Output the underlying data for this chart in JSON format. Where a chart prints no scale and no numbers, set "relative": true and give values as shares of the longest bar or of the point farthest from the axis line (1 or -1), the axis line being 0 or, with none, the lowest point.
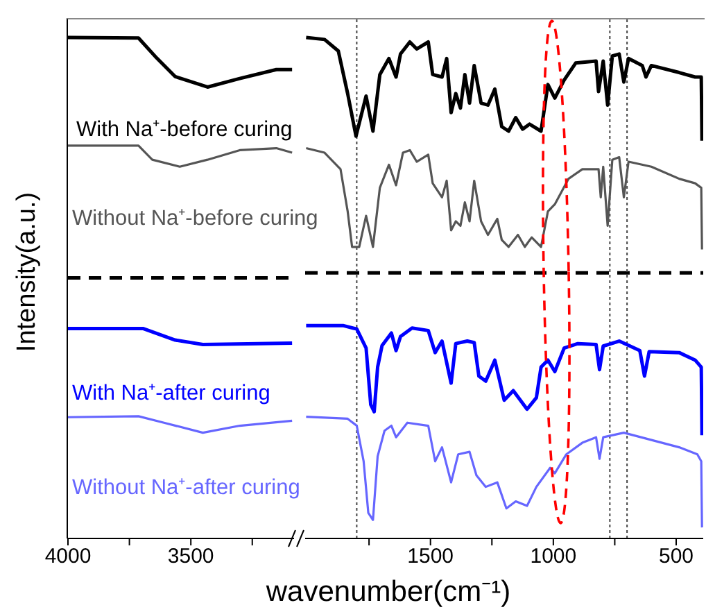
{
  "chart_data": [
    {
      "type": "line",
      "ylabel": "Intensity(a.u.)",
      "relative": true,
      "xlim": [
        4000,
        3080
      ],
      "xticks": [
        4000,
        {
          "value": 3750,
          "label": null
        },
        3500,
        {
          "value": 3250,
          "label": null
        }
      ],
      "marker": "none",
      "line_style": "solid",
      "ref_lines": [
        {
          "axis": "y",
          "value": 0.52,
          "color": "#000000",
          "line_style": "dashed"
        }
      ],
      "series": [
        {
          "name": "With Na⁺-before curing",
          "color": "#000000",
          "x": [
            4000,
            3713,
            3639,
            3564,
            3432,
            3301,
            3152,
            3088
          ],
          "values": [
            1.0,
            0.999,
            0.959,
            0.922,
            0.901,
            0.918,
            0.936,
            0.936
          ]
        },
        {
          "name": "Without Na⁺-before curing",
          "color": "#555555",
          "x": [
            4000,
            3713,
            3657,
            3545,
            3432,
            3301,
            3152,
            3088
          ],
          "values": [
            0.784,
            0.784,
            0.756,
            0.742,
            0.756,
            0.775,
            0.779,
            0.77
          ]
        },
        {
          "name": "With Na⁺-after curing",
          "color": "#0000ff",
          "x": [
            4000,
            3695,
            3564,
            3451,
            3088
          ],
          "values": [
            0.419,
            0.419,
            0.396,
            0.387,
            0.39
          ]
        },
        {
          "name": "Without Na⁺-after curing",
          "color": "#6666ff",
          "x": [
            4000,
            3713,
            3601,
            3451,
            3301,
            3088
          ],
          "values": [
            0.242,
            0.244,
            0.23,
            0.211,
            0.225,
            0.235
          ]
        }
      ]
    },
    {
      "type": "line",
      "xlabel": "wavenumber(cm⁻¹)",
      "relative": true,
      "xlim": [
        2010,
        390
      ],
      "xticks": [
        {
          "value": 1750,
          "label": null
        },
        1500,
        {
          "value": 1250,
          "label": null
        },
        1000,
        {
          "value": 750,
          "label": null
        },
        500
      ],
      "marker": "none",
      "line_style": "solid",
      "ref_lines": [
        {
          "axis": "y",
          "value": 0.53,
          "color": "#000000",
          "line_style": "dashed"
        },
        {
          "axis": "x",
          "value": 1800,
          "color": "#444444",
          "line_style": "dotted"
        },
        {
          "axis": "x",
          "value": 770,
          "color": "#444444",
          "line_style": "dotted"
        },
        {
          "axis": "x",
          "value": 700,
          "color": "#444444",
          "line_style": "dotted"
        }
      ],
      "series": [
        {
          "color": "#000000",
          "x": [
            2006,
            1931,
            1875,
            1837,
            1803,
            1762,
            1734,
            1706,
            1669,
            1640,
            1622,
            1584,
            1556,
            1509,
            1491,
            1453,
            1434,
            1416,
            1397,
            1378,
            1360,
            1341,
            1322,
            1294,
            1266,
            1238,
            1210,
            1182,
            1153,
            1125,
            1097,
            1050,
            1022,
            994,
            956,
            909,
            826,
            816,
            797,
            779,
            760,
            732,
            713,
            694,
            638,
            623,
            601,
            488,
            423,
            398,
            395
          ],
          "values": [
            1.0,
            0.996,
            0.973,
            0.888,
            0.803,
            0.883,
            0.813,
            0.926,
            0.958,
            0.921,
            0.967,
            0.991,
            0.977,
            0.991,
            0.926,
            0.921,
            0.958,
            0.85,
            0.888,
            0.859,
            0.926,
            0.869,
            0.944,
            0.869,
            0.865,
            0.897,
            0.822,
            0.813,
            0.84,
            0.817,
            0.827,
            0.813,
            0.906,
            0.879,
            0.915,
            0.949,
            0.953,
            0.892,
            0.953,
            0.865,
            0.963,
            0.967,
            0.911,
            0.958,
            0.944,
            0.921,
            0.944,
            0.93,
            0.921,
            0.921,
            0.794
          ]
        },
        {
          "color": "#555555",
          "x": [
            2006,
            1931,
            1866,
            1837,
            1819,
            1790,
            1762,
            1734,
            1706,
            1669,
            1640,
            1612,
            1584,
            1556,
            1509,
            1491,
            1453,
            1434,
            1416,
            1397,
            1378,
            1360,
            1341,
            1322,
            1294,
            1266,
            1228,
            1210,
            1182,
            1144,
            1116,
            1088,
            1050,
            1022,
            994,
            938,
            882,
            816,
            807,
            797,
            779,
            760,
            732,
            713,
            694,
            601,
            488,
            423,
            398,
            395
          ],
          "values": [
            0.779,
            0.77,
            0.737,
            0.653,
            0.582,
            0.582,
            0.644,
            0.582,
            0.7,
            0.746,
            0.705,
            0.77,
            0.775,
            0.752,
            0.766,
            0.709,
            0.681,
            0.714,
            0.615,
            0.633,
            0.624,
            0.671,
            0.633,
            0.714,
            0.633,
            0.606,
            0.638,
            0.596,
            0.582,
            0.606,
            0.582,
            0.601,
            0.582,
            0.653,
            0.667,
            0.718,
            0.737,
            0.737,
            0.681,
            0.742,
            0.624,
            0.756,
            0.761,
            0.681,
            0.752,
            0.742,
            0.718,
            0.709,
            0.7,
            0.577
          ]
        },
        {
          "color": "#0000ff",
          "x": [
            2006,
            1856,
            1800,
            1762,
            1743,
            1729,
            1715,
            1697,
            1659,
            1640,
            1622,
            1575,
            1509,
            1481,
            1453,
            1416,
            1397,
            1350,
            1322,
            1303,
            1275,
            1238,
            1200,
            1163,
            1107,
            1069,
            1050,
            1022,
            994,
            956,
            900,
            826,
            812,
            797,
            732,
            648,
            629,
            610,
            488,
            423,
            398,
            395
          ],
          "values": [
            0.425,
            0.425,
            0.418,
            0.38,
            0.267,
            0.253,
            0.342,
            0.385,
            0.41,
            0.375,
            0.403,
            0.42,
            0.415,
            0.371,
            0.394,
            0.31,
            0.389,
            0.394,
            0.391,
            0.324,
            0.314,
            0.356,
            0.276,
            0.295,
            0.258,
            0.281,
            0.342,
            0.356,
            0.333,
            0.38,
            0.389,
            0.387,
            0.337,
            0.384,
            0.394,
            0.375,
            0.324,
            0.373,
            0.371,
            0.356,
            0.342,
            0.206
          ]
        },
        {
          "color": "#6666ff",
          "x": [
            2006,
            1837,
            1800,
            1772,
            1753,
            1734,
            1715,
            1687,
            1659,
            1640,
            1594,
            1509,
            1481,
            1453,
            1416,
            1387,
            1341,
            1313,
            1275,
            1228,
            1191,
            1153,
            1107,
            1069,
            1013,
            994,
            947,
            882,
            826,
            812,
            797,
            713,
            488,
            414,
            398,
            395
          ],
          "values": [
            0.243,
            0.239,
            0.225,
            0.154,
            0.051,
            0.037,
            0.164,
            0.215,
            0.225,
            0.202,
            0.231,
            0.225,
            0.154,
            0.182,
            0.112,
            0.168,
            0.173,
            0.126,
            0.103,
            0.112,
            0.06,
            0.074,
            0.065,
            0.103,
            0.141,
            0.13,
            0.168,
            0.191,
            0.202,
            0.159,
            0.202,
            0.211,
            0.182,
            0.168,
            0.154,
            0.022
          ]
        }
      ]
    }
  ]
}
